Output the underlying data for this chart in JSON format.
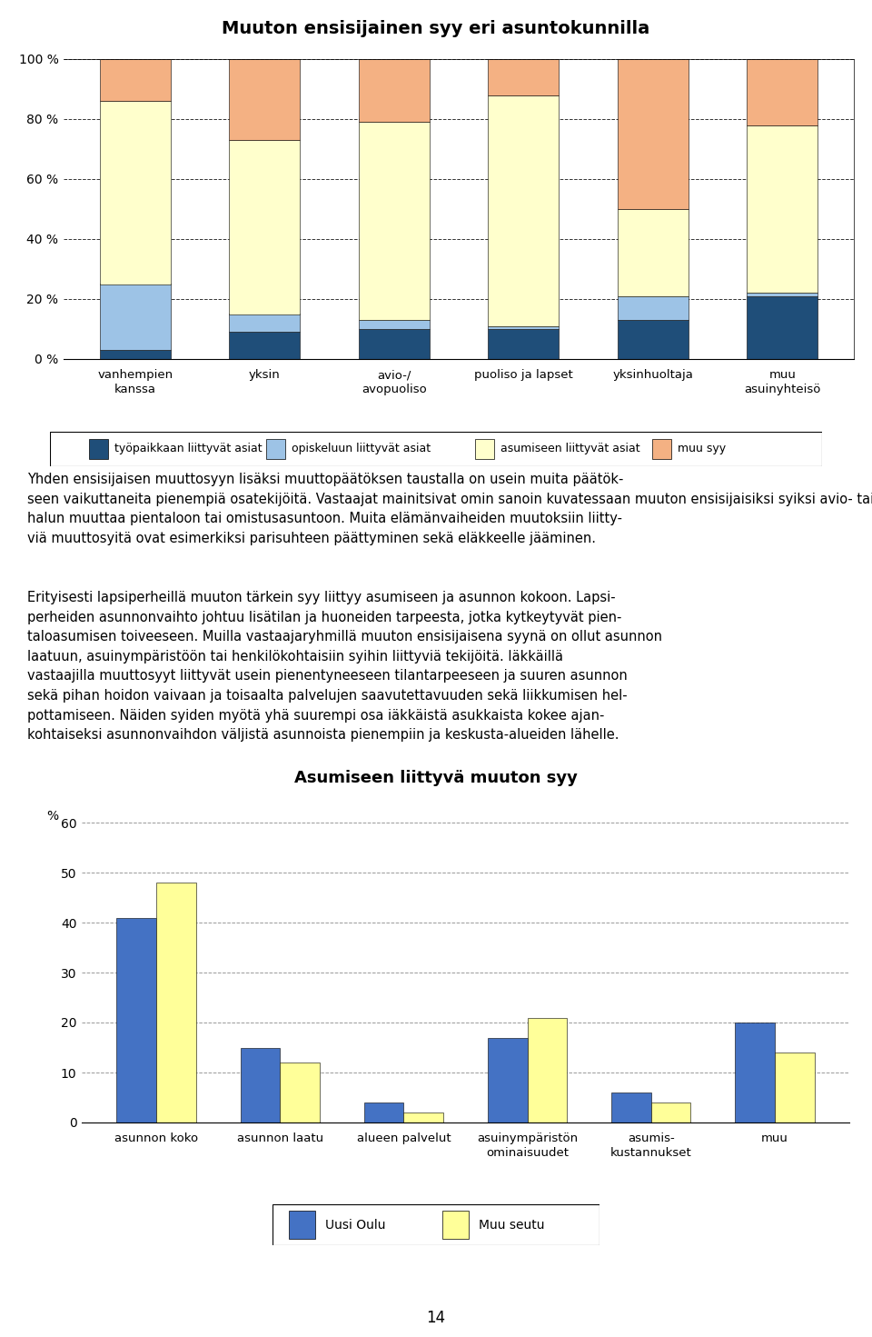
{
  "chart1_title": "Muuton ensisijainen syy eri asuntokunnilla",
  "chart1_categories": [
    "vanhempien\nkanssa",
    "yksin",
    "avio-/\navopuoliso",
    "puoliso ja lapset",
    "yksinhuoltaja",
    "muu\nasuinyhteisö"
  ],
  "chart1_series": {
    "tyopaikkaan": [
      3,
      9,
      10,
      10,
      13,
      21
    ],
    "opiskeluun": [
      22,
      6,
      3,
      1,
      8,
      1
    ],
    "asumiseen": [
      61,
      58,
      66,
      77,
      29,
      56
    ],
    "muu": [
      14,
      27,
      21,
      12,
      50,
      22
    ]
  },
  "chart1_colors": {
    "tyopaikkaan": "#1F4E79",
    "opiskeluun": "#9DC3E6",
    "asumiseen": "#FFFFCC",
    "muu": "#F4B183"
  },
  "chart1_legend": [
    "työpaikkaan liittyvät asiat",
    "opiskeluun liittyvät asiat",
    "asumiseen liittyvät asiat",
    "muu syy"
  ],
  "chart2_title": "Asumiseen liittyvä muuton syy",
  "chart2_categories": [
    "asunnon koko",
    "asunnon laatu",
    "alueen palvelut",
    "asuinympäristön\nominaisuudet",
    "asumis-\nkustannukset",
    "muu"
  ],
  "chart2_uusi_oulu": [
    41,
    15,
    4,
    17,
    6,
    20
  ],
  "chart2_muu_seutu": [
    48,
    12,
    2,
    21,
    4,
    14
  ],
  "chart2_colors": {
    "uusi_oulu": "#4472C4",
    "muu_seutu": "#FFFF99"
  },
  "text1_lines": [
    "Yhden ensisijaisen muuttosyyn lisäksi muuttopäätöksen taustalla on usein muita päätök-",
    "seen vaikuttaneita pienempiä osatekijöitä. Vastaajat mainitsivat omin sanoin kuvatessaan muuton ensisijaisiksi syiksi avio- tai avopuolison kanssa yhteen muuttamisen sekä",
    "halun muuttaa pientaloon tai omistusasuntoon. Muita elämänvaiheiden muutoksiin liitty-",
    "viä muuttosyitä ovat esimerkiksi parisuhteen päättyminen sekä eläkkeelle jääminen."
  ],
  "text2_lines": [
    "Erityisesti lapsiperheillä muuton tärkein syy liittyy asumiseen ja asunnon kokoon. Lapsi-",
    "perheiden asunnonvaihto johtuu lisätilan ja huoneiden tarpeesta, jotka kytkeytyvät pien-",
    "taloasumisen toiveeseen. Muilla vastaajaryhmillä muuton ensisijaisena syynä on ollut asunnon laatuun, asuinympäristöön tai henkilökohtaisiin syihin liittyviä tekijöitä. Iäkkäillä",
    "vastaajilla muuttosyyt liittyvät usein pienentyneeseen tilantarpeeseen ja suuren asunnon",
    "sekä pihan hoidon vaivaan ja toisaalta palvelujen saavutettavuuden sekä liikkumisen hel-",
    "pottamiseen. Näiden syiden myötä yhä suurempi osa iäkkäistä asukkaista kokee ajan-",
    "kohtaiseksi asunnonvaihdon väljistä asunnoista pienempiin ja keskusta-alueiden lähelle."
  ],
  "page_number": "14"
}
